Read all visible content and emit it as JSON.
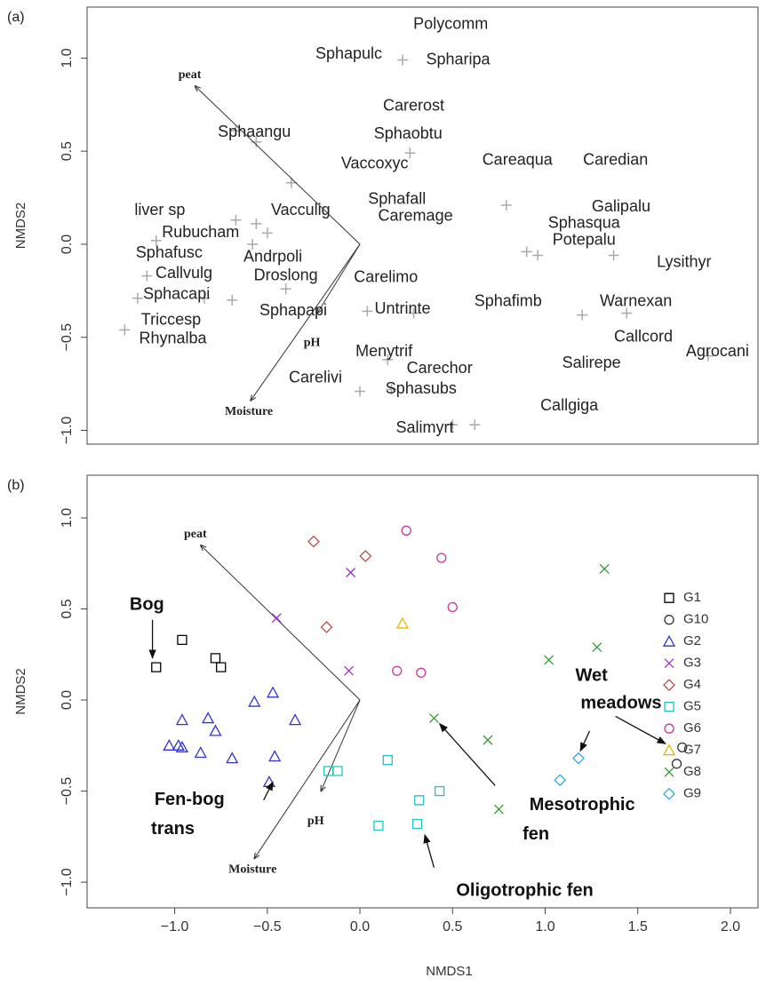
{
  "chart_data": [
    {
      "type": "scatter",
      "panel_label": "(a)",
      "y_label": "NMDS2",
      "xlim": [
        -1.473,
        2.149
      ],
      "ylim": [
        -1.074,
        1.274
      ],
      "yticks": [
        {
          "value": -1,
          "label": "−1.0"
        },
        {
          "value": -0.5,
          "label": "−0.5"
        },
        {
          "value": 0,
          "label": "0.0"
        },
        0.5,
        {
          "value": 1,
          "label": "1.0"
        }
      ],
      "vectors": [
        {
          "name": "peat",
          "x": -0.89,
          "y": 0.85
        },
        {
          "name": "Moisture",
          "x": -0.59,
          "y": -0.84
        },
        {
          "name": "pH",
          "x": -0.23,
          "y": -0.37
        }
      ],
      "points": [
        {
          "label": "Polycomm",
          "x": 0.49,
          "y": 1.18
        },
        {
          "label": "Sphapulc",
          "x": -0.06,
          "y": 1.02
        },
        {
          "label": "Spharipa",
          "x": 0.53,
          "y": 0.99
        },
        {
          "label": "Carerost",
          "x": 0.29,
          "y": 0.74
        },
        {
          "label": "Sphaangu",
          "x": -0.57,
          "y": 0.6
        },
        {
          "label": "Sphaobtu",
          "x": 0.26,
          "y": 0.59
        },
        {
          "label": "Careaqua",
          "x": 0.85,
          "y": 0.45
        },
        {
          "label": "Caredian",
          "x": 1.38,
          "y": 0.45
        },
        {
          "label": "Vaccoxyc",
          "x": 0.08,
          "y": 0.43
        },
        {
          "label": "Sphafall",
          "x": 0.2,
          "y": 0.24
        },
        {
          "label": "Galipalu",
          "x": 1.41,
          "y": 0.2
        },
        {
          "label": "liver sp",
          "x": -1.08,
          "y": 0.18
        },
        {
          "label": "Vacculig",
          "x": -0.32,
          "y": 0.18
        },
        {
          "label": "Caremage",
          "x": 0.3,
          "y": 0.15
        },
        {
          "label": "Sphasqua",
          "x": 1.21,
          "y": 0.11
        },
        {
          "label": "Rubucham",
          "x": -0.86,
          "y": 0.06
        },
        {
          "label": "Potepalu",
          "x": 1.21,
          "y": 0.02
        },
        {
          "label": "Sphafusc",
          "x": -1.03,
          "y": -0.05
        },
        {
          "label": "Andrpoli",
          "x": -0.47,
          "y": -0.07
        },
        {
          "label": "Lysithyr",
          "x": 1.75,
          "y": -0.1
        },
        {
          "label": "Callvulg",
          "x": -0.95,
          "y": -0.16
        },
        {
          "label": "Droslong",
          "x": -0.4,
          "y": -0.17
        },
        {
          "label": "Carelimo",
          "x": 0.14,
          "y": -0.18
        },
        {
          "label": "Sphacapi",
          "x": -0.99,
          "y": -0.27
        },
        {
          "label": "Sphafimb",
          "x": 0.8,
          "y": -0.31
        },
        {
          "label": "Warnexan",
          "x": 1.49,
          "y": -0.31
        },
        {
          "label": "Sphapapi",
          "x": -0.36,
          "y": -0.36
        },
        {
          "label": "Untrinte",
          "x": 0.23,
          "y": -0.35
        },
        {
          "label": "Triccesp",
          "x": -1.02,
          "y": -0.41
        },
        {
          "label": "Rhynalba",
          "x": -1.01,
          "y": -0.51
        },
        {
          "label": "Callcord",
          "x": 1.53,
          "y": -0.5
        },
        {
          "label": "Agrocani",
          "x": 1.93,
          "y": -0.58
        },
        {
          "label": "Menytrif",
          "x": 0.13,
          "y": -0.58
        },
        {
          "label": "Carechor",
          "x": 0.43,
          "y": -0.67
        },
        {
          "label": "Salirepe",
          "x": 1.25,
          "y": -0.64
        },
        {
          "label": "Carelivi",
          "x": -0.24,
          "y": -0.72
        },
        {
          "label": "Sphasubs",
          "x": 0.33,
          "y": -0.78
        },
        {
          "label": "Callgiga",
          "x": 1.13,
          "y": -0.87
        },
        {
          "label": "Salimyrt",
          "x": 0.35,
          "y": -0.99
        }
      ],
      "crosses": {
        "color": "#aaaaaa",
        "x": [
          0.23,
          -0.67,
          -0.56,
          -0.37,
          -0.67,
          -0.56,
          -0.5,
          -0.58,
          -1.1,
          -1.2,
          -1.15,
          -0.84,
          -0.69,
          -0.4,
          0.0,
          0.27,
          0.79,
          0.9,
          0.96,
          1.37,
          1.2,
          1.44,
          0.17,
          0.29,
          0.5,
          0.62,
          1.88,
          0.04,
          -1.27,
          0.15
        ],
        "y": [
          0.99,
          0.61,
          0.55,
          0.33,
          0.13,
          0.11,
          0.06,
          0.0,
          0.02,
          -0.29,
          -0.17,
          -0.29,
          -0.3,
          -0.24,
          -0.79,
          0.49,
          0.21,
          -0.04,
          -0.06,
          -0.06,
          -0.38,
          -0.37,
          -0.78,
          -0.37,
          -0.97,
          -0.97,
          -0.6,
          -0.36,
          -0.46,
          -0.62
        ]
      }
    },
    {
      "type": "scatter",
      "panel_label": "(b)",
      "y_label": "NMDS2",
      "x_label": "NMDS1",
      "xlim": [
        -1.473,
        2.149
      ],
      "ylim": [
        -1.141,
        1.234
      ],
      "xticks": [
        {
          "value": -1,
          "label": "−1.0"
        },
        {
          "value": -0.5,
          "label": "−0.5"
        },
        {
          "value": 0,
          "label": "0.0"
        },
        0.5,
        {
          "value": 1,
          "label": "1.0"
        },
        1.5,
        {
          "value": 2,
          "label": "2.0"
        }
      ],
      "yticks": [
        {
          "value": -1,
          "label": "−1.0"
        },
        {
          "value": -0.5,
          "label": "−0.5"
        },
        {
          "value": 0,
          "label": "0.0"
        },
        0.5,
        {
          "value": 1,
          "label": "1.0"
        }
      ],
      "legend": "right",
      "vectors": [
        {
          "name": "peat",
          "x": -0.86,
          "y": 0.85
        },
        {
          "name": "Moisture",
          "x": -0.57,
          "y": -0.87
        },
        {
          "name": "pH",
          "x": -0.21,
          "y": -0.5
        }
      ],
      "series": [
        {
          "name": "G1",
          "color": "#000000",
          "marker": "square",
          "x": [
            -1.1,
            -0.96,
            -0.78,
            -0.75
          ],
          "y": [
            0.18,
            0.33,
            0.23,
            0.18
          ]
        },
        {
          "name": "G10",
          "color": "#333333",
          "marker": "circle",
          "x": [
            1.74,
            1.71
          ],
          "y": [
            -0.26,
            -0.35
          ]
        },
        {
          "name": "G2",
          "color": "#3333cc",
          "marker": "triangle",
          "x": [
            -0.96,
            -0.82,
            -0.78,
            -0.57,
            -0.47,
            -0.35,
            -1.03,
            -0.98,
            -0.96,
            -0.86,
            -0.69,
            -0.46,
            -0.49
          ],
          "y": [
            -0.11,
            -0.1,
            -0.17,
            -0.01,
            0.04,
            -0.11,
            -0.25,
            -0.25,
            -0.26,
            -0.29,
            -0.32,
            -0.31,
            -0.45
          ]
        },
        {
          "name": "G3",
          "color": "#9933cc",
          "marker": "x",
          "x": [
            -0.05,
            -0.45,
            -0.06
          ],
          "y": [
            0.7,
            0.45,
            0.16
          ]
        },
        {
          "name": "G4",
          "color": "#b5504a",
          "marker": "diamond",
          "x": [
            -0.25,
            0.03,
            -0.18
          ],
          "y": [
            0.87,
            0.79,
            0.4
          ]
        },
        {
          "name": "G5",
          "color": "#22c4c4",
          "marker": "square",
          "x": [
            -0.17,
            -0.12,
            0.15,
            0.32,
            0.43,
            0.1,
            0.31
          ],
          "y": [
            -0.39,
            -0.39,
            -0.33,
            -0.55,
            -0.5,
            -0.69,
            -0.68
          ]
        },
        {
          "name": "G6",
          "color": "#cc3399",
          "marker": "circle",
          "x": [
            0.25,
            0.44,
            0.5,
            0.2,
            0.33
          ],
          "y": [
            0.93,
            0.78,
            0.51,
            0.16,
            0.15
          ]
        },
        {
          "name": "G7",
          "color": "#e6b800",
          "marker": "triangle",
          "x": [
            0.23
          ],
          "y": [
            0.42
          ]
        },
        {
          "name": "G8",
          "color": "#339933",
          "marker": "x",
          "x": [
            1.32,
            1.28,
            1.02,
            0.4,
            0.69,
            0.75
          ],
          "y": [
            0.72,
            0.29,
            0.22,
            -0.1,
            -0.22,
            -0.6
          ]
        },
        {
          "name": "G9",
          "color": "#33aadd",
          "marker": "diamond",
          "x": [
            1.18,
            1.08
          ],
          "y": [
            -0.32,
            -0.44
          ]
        }
      ],
      "annotations": [
        [
          "Bog"
        ],
        [
          "Fen-bog",
          "trans"
        ],
        [
          "Oligotrophic fen"
        ],
        [
          "Mesotrophic",
          "fen"
        ],
        [
          "Wet",
          "meadows"
        ]
      ]
    }
  ]
}
